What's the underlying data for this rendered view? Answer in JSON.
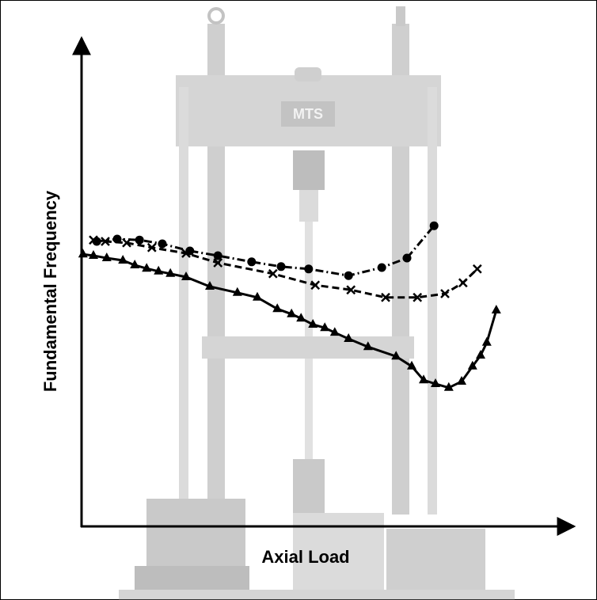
{
  "chart_data": {
    "type": "line",
    "x_label": "Axial Load",
    "y_label": "Fundamental Frequency",
    "xlim": [
      0,
      100
    ],
    "ylim": [
      0,
      100
    ],
    "series": [
      {
        "color": "#000000",
        "marker": "circle",
        "line_style": "dashdot",
        "x": [
          3.2,
          7.5,
          12.2,
          17,
          22.8,
          28.7,
          35.8,
          42,
          47.8,
          56.2,
          63.2,
          68.5,
          74.2
        ],
        "values": [
          60,
          60.5,
          60.3,
          59.5,
          58,
          57,
          55.7,
          54.7,
          54.2,
          52.8,
          54.5,
          56.5,
          63.3
        ]
      },
      {
        "color": "#000000",
        "marker": "x",
        "line_style": "dashed",
        "x": [
          2.5,
          5,
          9.5,
          14.8,
          22,
          28.7,
          40.3,
          49.2,
          56.7,
          64,
          70.7,
          76.5,
          80.3,
          83.3
        ],
        "values": [
          60.3,
          60,
          59.7,
          58.7,
          57.5,
          55.5,
          53.2,
          50.8,
          49.8,
          48.2,
          48.2,
          49,
          51.3,
          54.2
        ]
      },
      {
        "color": "#000000",
        "marker": "triangle",
        "line_style": "solid",
        "x": [
          0.3,
          2.5,
          5.3,
          8.7,
          11.2,
          13.7,
          16.2,
          18.7,
          22,
          27,
          32.8,
          37,
          41.2,
          44.2,
          46.2,
          48.7,
          51.2,
          53.3,
          56.2,
          60.3,
          66.2,
          69.5,
          72,
          74.5,
          77.3,
          80,
          82.3,
          84,
          85.3,
          87.3
        ],
        "values": [
          57.3,
          57,
          56.5,
          56,
          55,
          54.3,
          53.7,
          53.2,
          52.5,
          50.5,
          49.2,
          48.2,
          45.8,
          44.7,
          43.8,
          42.5,
          41.8,
          40.8,
          39.5,
          37.8,
          35.8,
          33.7,
          30.8,
          30,
          29.2,
          30.5,
          33.7,
          36,
          38.7,
          45.5
        ]
      }
    ]
  }
}
